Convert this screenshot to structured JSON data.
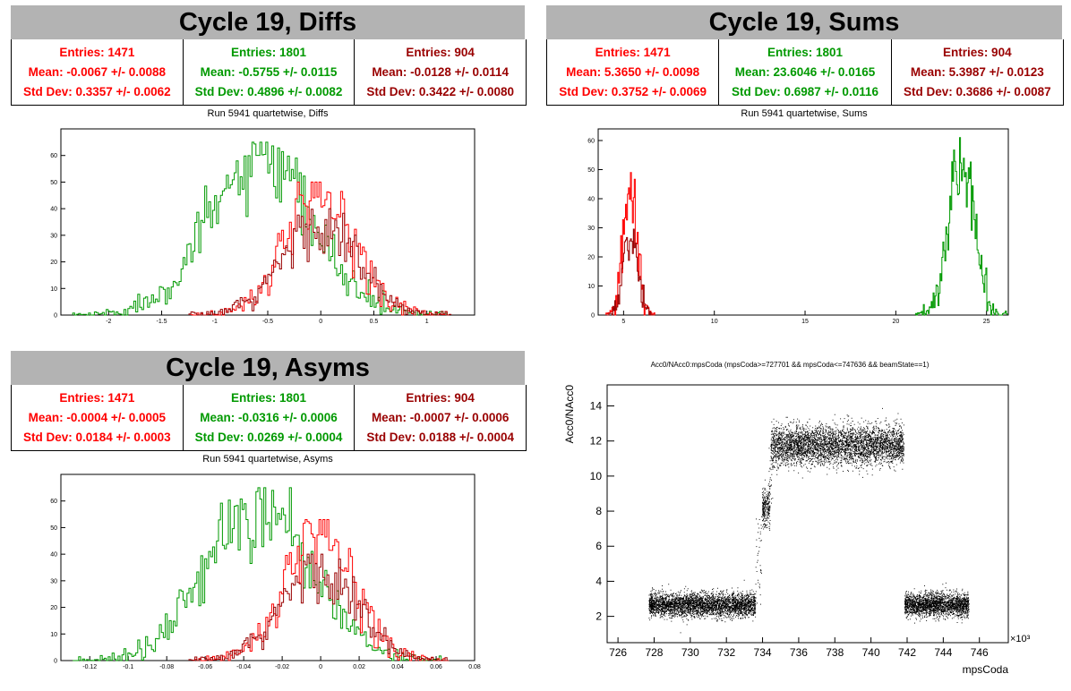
{
  "panels": {
    "diffs": {
      "title": "Cycle 19, Diffs",
      "subtitle": "Run 5941 quartetwise, Diffs",
      "stats": [
        {
          "entries": "Entries: 1471",
          "mean": "Mean: -0.0067 +/- 0.0088",
          "std": "Std Dev: 0.3357 +/- 0.0062",
          "color": "#ff0000"
        },
        {
          "entries": "Entries: 1801",
          "mean": "Mean: -0.5755 +/- 0.0115",
          "std": "Std Dev: 0.4896 +/- 0.0082",
          "color": "#009900"
        },
        {
          "entries": "Entries: 904",
          "mean": "Mean: -0.0128 +/- 0.0114",
          "std": "Std Dev: 0.3422 +/- 0.0080",
          "color": "#990000"
        }
      ]
    },
    "sums": {
      "title": "Cycle 19, Sums",
      "subtitle": "Run 5941 quartetwise, Sums",
      "stats": [
        {
          "entries": "Entries: 1471",
          "mean": "Mean: 5.3650 +/- 0.0098",
          "std": "Std Dev: 0.3752 +/- 0.0069",
          "color": "#ff0000"
        },
        {
          "entries": "Entries: 1801",
          "mean": "Mean: 23.6046 +/- 0.0165",
          "std": "Std Dev: 0.6987 +/- 0.0116",
          "color": "#009900"
        },
        {
          "entries": "Entries: 904",
          "mean": "Mean: 5.3987 +/- 0.0123",
          "std": "Std Dev: 0.3686 +/- 0.0087",
          "color": "#990000"
        }
      ]
    },
    "asyms": {
      "title": "Cycle 19, Asyms",
      "subtitle": "Run 5941 quartetwise, Asyms",
      "stats": [
        {
          "entries": "Entries: 1471",
          "mean": "Mean: -0.0004 +/- 0.0005",
          "std": "Std Dev: 0.0184 +/- 0.0003",
          "color": "#ff0000"
        },
        {
          "entries": "Entries: 1801",
          "mean": "Mean: -0.0316 +/- 0.0006",
          "std": "Std Dev: 0.0269 +/- 0.0004",
          "color": "#009900"
        },
        {
          "entries": "Entries: 904",
          "mean": "Mean: -0.0007 +/- 0.0006",
          "std": "Std Dev: 0.0188 +/- 0.0004",
          "color": "#990000"
        }
      ]
    },
    "scatter": {
      "title": "Acc0/NAcc0:mpsCoda (mpsCoda>=727701 && mpsCoda<=747636 && beamState==1)"
    }
  },
  "chart_data": [
    {
      "type": "histogram",
      "title": "Run 5941 quartetwise, Diffs",
      "xlim": [
        -2.45,
        1.45
      ],
      "ylim": [
        0,
        70
      ],
      "xticks": [
        -2,
        -1.5,
        -1,
        -0.5,
        0,
        0.5,
        1
      ],
      "yticks": [
        0,
        10,
        20,
        30,
        40,
        50,
        60
      ],
      "series": [
        {
          "color": "#009900",
          "entries": 1801,
          "mean": -0.5755,
          "std": 0.4896,
          "peak": 65
        },
        {
          "color": "#ff0000",
          "entries": 1471,
          "mean": -0.0067,
          "std": 0.3357,
          "peak": 50
        },
        {
          "color": "#990000",
          "entries": 904,
          "mean": -0.0128,
          "std": 0.3422,
          "peak": 40
        }
      ]
    },
    {
      "type": "histogram",
      "title": "Run 5941 quartetwise, Sums",
      "xlim": [
        3.6,
        26.2
      ],
      "ylim": [
        0,
        64
      ],
      "xticks": [
        5,
        10,
        15,
        20,
        25
      ],
      "yticks": [
        0,
        10,
        20,
        30,
        40,
        50,
        60
      ],
      "series": [
        {
          "color": "#009900",
          "entries": 1801,
          "mean": 23.6046,
          "std": 0.6987,
          "peak": 61
        },
        {
          "color": "#ff0000",
          "entries": 1471,
          "mean": 5.365,
          "std": 0.3752,
          "peak": 49
        },
        {
          "color": "#990000",
          "entries": 904,
          "mean": 5.3987,
          "std": 0.3686,
          "peak": 30
        }
      ]
    },
    {
      "type": "histogram",
      "title": "Run 5941 quartetwise, Asyms",
      "xlim": [
        -0.135,
        0.08
      ],
      "ylim": [
        0,
        70
      ],
      "xticks": [
        -0.12,
        -0.1,
        -0.08,
        -0.06,
        -0.04,
        -0.02,
        0,
        0.02,
        0.04,
        0.06,
        0.08
      ],
      "yticks": [
        0,
        10,
        20,
        30,
        40,
        50,
        60
      ],
      "series": [
        {
          "color": "#009900",
          "entries": 1801,
          "mean": -0.0316,
          "std": 0.0269,
          "peak": 65
        },
        {
          "color": "#ff0000",
          "entries": 1471,
          "mean": -0.0004,
          "std": 0.0184,
          "peak": 53
        },
        {
          "color": "#990000",
          "entries": 904,
          "mean": -0.0007,
          "std": 0.0188,
          "peak": 40
        }
      ]
    },
    {
      "type": "scatter",
      "title": "Acc0/NAcc0:mpsCoda (mpsCoda>=727701 && mpsCoda<=747636 && beamState==1)",
      "xlabel": "mpsCoda",
      "ylabel": "Acc0/NAcc0",
      "x_multiplier": "×10³",
      "xlim": [
        725.4,
        747.6
      ],
      "ylim": [
        0.5,
        15.2
      ],
      "xticks": [
        726,
        728,
        730,
        732,
        734,
        736,
        738,
        740,
        742,
        744,
        746
      ],
      "yticks": [
        2,
        4,
        6,
        8,
        10,
        12,
        14
      ],
      "clusters": [
        {
          "x": [
            727.7,
            733.6
          ],
          "y_center": 2.65,
          "y_spread": 0.35
        },
        {
          "x": [
            733.6,
            734.0
          ],
          "y_center": 0.0,
          "y_spread": 0.0,
          "note": "rising edge"
        },
        {
          "x": [
            734.0,
            734.4
          ],
          "y_center": 8.2,
          "y_spread": 0.55
        },
        {
          "x": [
            734.4,
            741.8
          ],
          "y_center": 11.8,
          "y_spread": 0.6
        },
        {
          "x": [
            741.8,
            745.4
          ],
          "y_center": 2.65,
          "y_spread": 0.35
        }
      ]
    }
  ]
}
